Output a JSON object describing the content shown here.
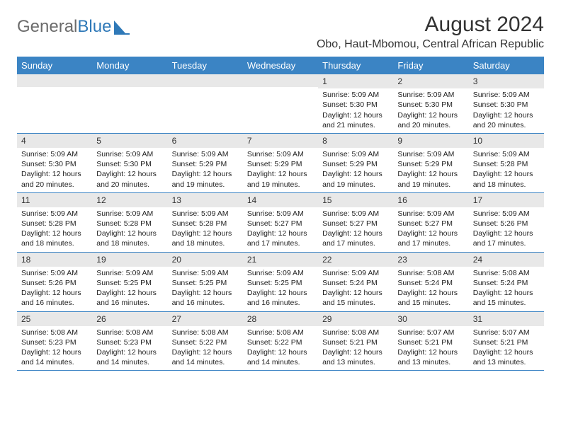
{
  "brand": {
    "part1": "General",
    "part2": "Blue"
  },
  "title": "August 2024",
  "location": "Obo, Haut-Mbomou, Central African Republic",
  "colors": {
    "header_bar": "#3b84c4",
    "header_text": "#ffffff",
    "daynum_bg": "#e8e8e8",
    "border": "#3b84c4",
    "body_text": "#222222",
    "logo_gray": "#6b6b6b",
    "logo_blue": "#2f79b8"
  },
  "day_labels": [
    "Sunday",
    "Monday",
    "Tuesday",
    "Wednesday",
    "Thursday",
    "Friday",
    "Saturday"
  ],
  "weeks": [
    [
      {
        "empty": true
      },
      {
        "empty": true
      },
      {
        "empty": true
      },
      {
        "empty": true
      },
      {
        "n": "1",
        "sunrise": "5:09 AM",
        "sunset": "5:30 PM",
        "daylight": "12 hours and 21 minutes."
      },
      {
        "n": "2",
        "sunrise": "5:09 AM",
        "sunset": "5:30 PM",
        "daylight": "12 hours and 20 minutes."
      },
      {
        "n": "3",
        "sunrise": "5:09 AM",
        "sunset": "5:30 PM",
        "daylight": "12 hours and 20 minutes."
      }
    ],
    [
      {
        "n": "4",
        "sunrise": "5:09 AM",
        "sunset": "5:30 PM",
        "daylight": "12 hours and 20 minutes."
      },
      {
        "n": "5",
        "sunrise": "5:09 AM",
        "sunset": "5:30 PM",
        "daylight": "12 hours and 20 minutes."
      },
      {
        "n": "6",
        "sunrise": "5:09 AM",
        "sunset": "5:29 PM",
        "daylight": "12 hours and 19 minutes."
      },
      {
        "n": "7",
        "sunrise": "5:09 AM",
        "sunset": "5:29 PM",
        "daylight": "12 hours and 19 minutes."
      },
      {
        "n": "8",
        "sunrise": "5:09 AM",
        "sunset": "5:29 PM",
        "daylight": "12 hours and 19 minutes."
      },
      {
        "n": "9",
        "sunrise": "5:09 AM",
        "sunset": "5:29 PM",
        "daylight": "12 hours and 19 minutes."
      },
      {
        "n": "10",
        "sunrise": "5:09 AM",
        "sunset": "5:28 PM",
        "daylight": "12 hours and 18 minutes."
      }
    ],
    [
      {
        "n": "11",
        "sunrise": "5:09 AM",
        "sunset": "5:28 PM",
        "daylight": "12 hours and 18 minutes."
      },
      {
        "n": "12",
        "sunrise": "5:09 AM",
        "sunset": "5:28 PM",
        "daylight": "12 hours and 18 minutes."
      },
      {
        "n": "13",
        "sunrise": "5:09 AM",
        "sunset": "5:28 PM",
        "daylight": "12 hours and 18 minutes."
      },
      {
        "n": "14",
        "sunrise": "5:09 AM",
        "sunset": "5:27 PM",
        "daylight": "12 hours and 17 minutes."
      },
      {
        "n": "15",
        "sunrise": "5:09 AM",
        "sunset": "5:27 PM",
        "daylight": "12 hours and 17 minutes."
      },
      {
        "n": "16",
        "sunrise": "5:09 AM",
        "sunset": "5:27 PM",
        "daylight": "12 hours and 17 minutes."
      },
      {
        "n": "17",
        "sunrise": "5:09 AM",
        "sunset": "5:26 PM",
        "daylight": "12 hours and 17 minutes."
      }
    ],
    [
      {
        "n": "18",
        "sunrise": "5:09 AM",
        "sunset": "5:26 PM",
        "daylight": "12 hours and 16 minutes."
      },
      {
        "n": "19",
        "sunrise": "5:09 AM",
        "sunset": "5:25 PM",
        "daylight": "12 hours and 16 minutes."
      },
      {
        "n": "20",
        "sunrise": "5:09 AM",
        "sunset": "5:25 PM",
        "daylight": "12 hours and 16 minutes."
      },
      {
        "n": "21",
        "sunrise": "5:09 AM",
        "sunset": "5:25 PM",
        "daylight": "12 hours and 16 minutes."
      },
      {
        "n": "22",
        "sunrise": "5:09 AM",
        "sunset": "5:24 PM",
        "daylight": "12 hours and 15 minutes."
      },
      {
        "n": "23",
        "sunrise": "5:08 AM",
        "sunset": "5:24 PM",
        "daylight": "12 hours and 15 minutes."
      },
      {
        "n": "24",
        "sunrise": "5:08 AM",
        "sunset": "5:24 PM",
        "daylight": "12 hours and 15 minutes."
      }
    ],
    [
      {
        "n": "25",
        "sunrise": "5:08 AM",
        "sunset": "5:23 PM",
        "daylight": "12 hours and 14 minutes."
      },
      {
        "n": "26",
        "sunrise": "5:08 AM",
        "sunset": "5:23 PM",
        "daylight": "12 hours and 14 minutes."
      },
      {
        "n": "27",
        "sunrise": "5:08 AM",
        "sunset": "5:22 PM",
        "daylight": "12 hours and 14 minutes."
      },
      {
        "n": "28",
        "sunrise": "5:08 AM",
        "sunset": "5:22 PM",
        "daylight": "12 hours and 14 minutes."
      },
      {
        "n": "29",
        "sunrise": "5:08 AM",
        "sunset": "5:21 PM",
        "daylight": "12 hours and 13 minutes."
      },
      {
        "n": "30",
        "sunrise": "5:07 AM",
        "sunset": "5:21 PM",
        "daylight": "12 hours and 13 minutes."
      },
      {
        "n": "31",
        "sunrise": "5:07 AM",
        "sunset": "5:21 PM",
        "daylight": "12 hours and 13 minutes."
      }
    ]
  ],
  "labels": {
    "sunrise_prefix": "Sunrise: ",
    "sunset_prefix": "Sunset: ",
    "daylight_prefix": "Daylight: "
  }
}
